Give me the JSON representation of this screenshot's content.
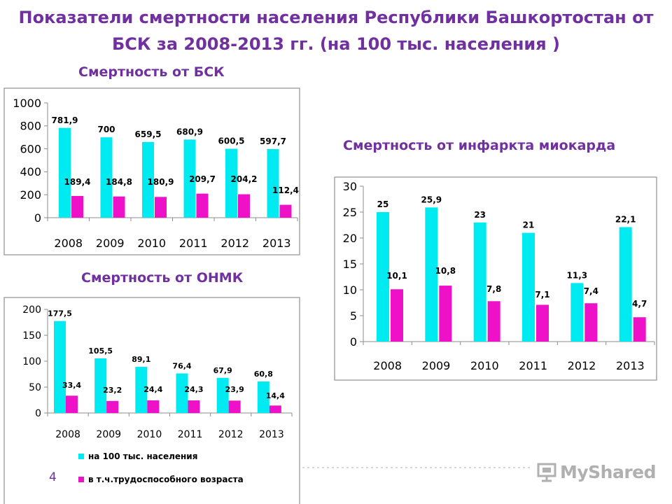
{
  "page": {
    "title": "Показатели смертности населения  Республики Башкортостан от\nБСК за 2008-2013 гг. (на 100 тыс. населения )",
    "slide_number": "4",
    "watermark": "MyShared"
  },
  "colors": {
    "series1": "#00eaf2",
    "series2": "#ee11c8",
    "title": "#7030a0",
    "border": "#a6a6a6",
    "grid": "#8c8c8c"
  },
  "legend": {
    "items": [
      "на 100 тыс. населения",
      "в т.ч.трудоспособного возраста"
    ]
  },
  "chart_data": [
    {
      "type": "bar",
      "title": "Смертность от БСК",
      "categories": [
        "2008",
        "2009",
        "2010",
        "2011",
        "2012",
        "2013"
      ],
      "ylim": [
        0,
        1000
      ],
      "yticks": [
        "0",
        "200",
        "400",
        "600",
        "800",
        "1000"
      ],
      "grid": false,
      "series": [
        {
          "values": [
            781.9,
            700,
            659.5,
            680.9,
            600.5,
            597.7
          ],
          "labels": [
            "781,9",
            "700",
            "659,5",
            "680,9",
            "600,5",
            "597,7"
          ]
        },
        {
          "values": [
            189.4,
            184.8,
            180.9,
            209.7,
            204.2,
            112.4
          ],
          "labels": [
            "189,4",
            "184,8",
            "180,9",
            "209,7",
            "204,2",
            "112,4"
          ]
        }
      ]
    },
    {
      "type": "bar",
      "title": "Смертность от инфаркта миокарда",
      "categories": [
        "2008",
        "2009",
        "2010",
        "2011",
        "2012",
        "2013"
      ],
      "ylim": [
        0,
        30
      ],
      "yticks": [
        "0",
        "5",
        "10",
        "15",
        "20",
        "25",
        "30"
      ],
      "grid": false,
      "series": [
        {
          "values": [
            25,
            25.9,
            23,
            21,
            11.3,
            22.1
          ],
          "labels": [
            "25",
            "25,9",
            "23",
            "21",
            "11,3",
            "22,1"
          ]
        },
        {
          "values": [
            10.1,
            10.8,
            7.8,
            7.1,
            7.4,
            4.7
          ],
          "labels": [
            "10,1",
            "10,8",
            "7,8",
            "7,1",
            "7,4",
            "4,7"
          ]
        }
      ]
    },
    {
      "type": "bar",
      "title": "Смертность от ОНМК",
      "categories": [
        "2008",
        "2009",
        "2010",
        "2011",
        "2012",
        "2013"
      ],
      "ylim": [
        0,
        200
      ],
      "yticks": [
        "0",
        "50",
        "100",
        "150",
        "200"
      ],
      "grid": false,
      "legend": "bottom",
      "series": [
        {
          "name": "на 100 тыс. населения",
          "values": [
            177.5,
            105.5,
            89.1,
            76.4,
            67.9,
            60.8
          ],
          "labels": [
            "177,5",
            "105,5",
            "89,1",
            "76,4",
            "67,9",
            "60,8"
          ]
        },
        {
          "name": "в т.ч.трудоспособного возраста",
          "values": [
            33.4,
            23.2,
            24.4,
            24.3,
            23.9,
            14.4
          ],
          "labels": [
            "33,4",
            "23,2",
            "24,4",
            "24,3",
            "23,9",
            "14,4"
          ]
        }
      ]
    }
  ]
}
